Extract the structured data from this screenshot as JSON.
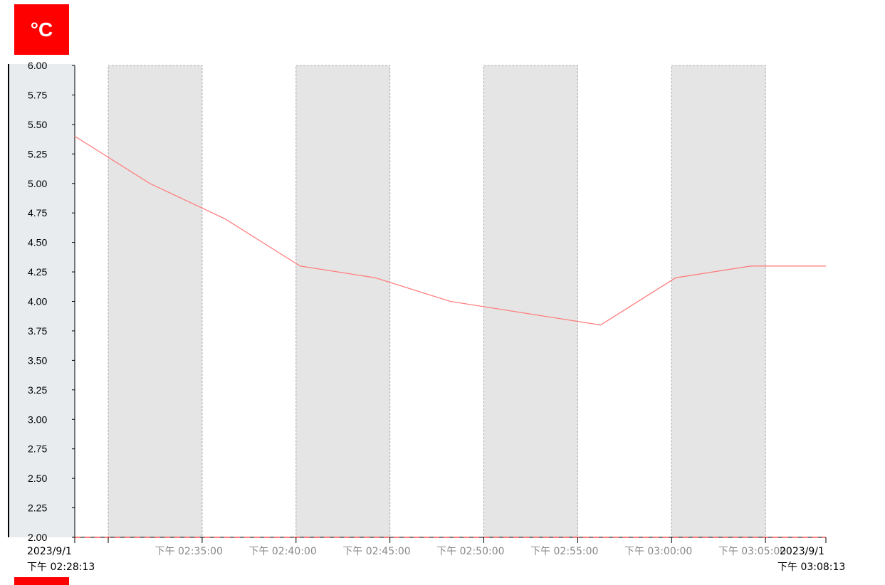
{
  "unit_label": "°C",
  "colors": {
    "accent": "#ff0000",
    "line": "#ff7f7f",
    "band": "#e5e5e5",
    "axis_panel": "#e8ecee"
  },
  "chart_data": {
    "type": "line",
    "title": "",
    "xlabel": "",
    "ylabel": "°C",
    "ylim": [
      2.0,
      6.0
    ],
    "y_ticks": [
      "6.00",
      "5.75",
      "5.50",
      "5.25",
      "5.00",
      "4.75",
      "4.50",
      "4.25",
      "4.00",
      "3.75",
      "3.50",
      "3.25",
      "3.00",
      "2.75",
      "2.50",
      "2.25",
      "2.00"
    ],
    "x_range": [
      "14:28:13",
      "15:08:13"
    ],
    "x_start_label": {
      "date": "2023/9/1",
      "time": "下午 02:28:13"
    },
    "x_end_label": {
      "date": "2023/9/1",
      "time": "下午 03:08:13"
    },
    "x_tick_labels": [
      "下午 02:35:00",
      "下午 02:40:00",
      "下午 02:45:00",
      "下午 02:50:00",
      "下午 02:55:00",
      "下午 03:00:00",
      "下午 03:05:00"
    ],
    "shaded_bands": [
      [
        "14:30:00",
        "14:35:00"
      ],
      [
        "14:40:00",
        "14:45:00"
      ],
      [
        "14:50:00",
        "14:55:00"
      ],
      [
        "15:00:00",
        "15:05:00"
      ]
    ],
    "series": [
      {
        "x": [
          "14:28:13",
          "14:32:13",
          "14:36:13",
          "14:40:13",
          "14:44:13",
          "14:48:13",
          "14:52:13",
          "14:56:13",
          "15:00:13",
          "15:04:13",
          "15:08:13"
        ],
        "y": [
          5.4,
          5.0,
          4.7,
          4.3,
          4.2,
          4.0,
          3.9,
          3.8,
          4.2,
          4.3,
          4.3
        ]
      }
    ],
    "grid": false,
    "legend": "none"
  }
}
